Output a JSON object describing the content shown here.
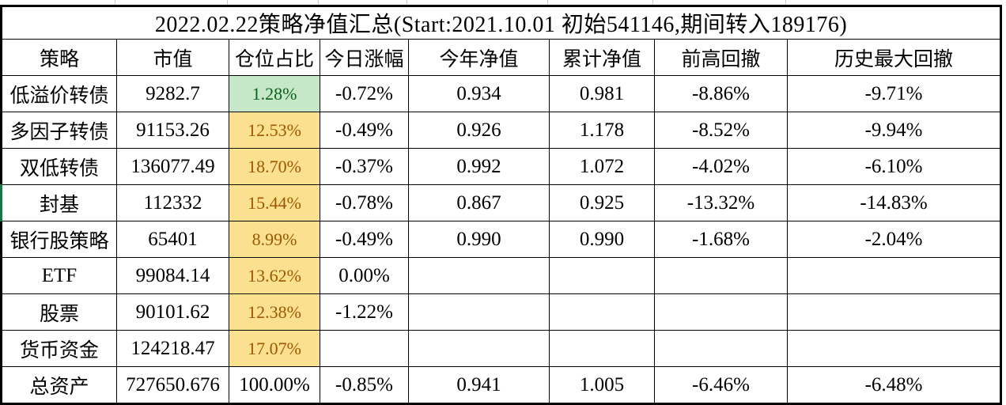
{
  "title": "2022.02.22策略净值汇总(Start:2021.10.01 初始541146,期间转入189176)",
  "colors": {
    "position_green_fill": "#C7E8C8",
    "position_green_text": "#0B611C",
    "position_yellow_fill": "#FBE18F",
    "position_yellow_text": "#9C5700",
    "grid_line": "#000000",
    "row_edge_marker_green": "#1E7145"
  },
  "table": {
    "columns": [
      {
        "key": "strategy",
        "label": "策略"
      },
      {
        "key": "market-value",
        "label": "市值"
      },
      {
        "key": "position-pct",
        "label": "仓位占比"
      },
      {
        "key": "today-change",
        "label": "今日涨幅"
      },
      {
        "key": "ytd-nav",
        "label": "今年净值"
      },
      {
        "key": "cumulative-nav",
        "label": "累计净值"
      },
      {
        "key": "drawdown-from-high",
        "label": "前高回撤"
      },
      {
        "key": "max-drawdown",
        "label": "历史最大回撤"
      }
    ],
    "rows": [
      {
        "fill": "green",
        "green_edge": false,
        "cells": [
          "低溢价转债",
          "9282.7",
          "1.28%",
          "-0.72%",
          "0.934",
          "0.981",
          "-8.86%",
          "-9.71%"
        ]
      },
      {
        "fill": "yellow",
        "green_edge": false,
        "cells": [
          "多因子转债",
          "91153.26",
          "12.53%",
          "-0.49%",
          "0.926",
          "1.178",
          "-8.52%",
          "-9.94%"
        ]
      },
      {
        "fill": "yellow",
        "green_edge": false,
        "cells": [
          "双低转债",
          "136077.49",
          "18.70%",
          "-0.37%",
          "0.992",
          "1.072",
          "-4.02%",
          "-6.10%"
        ]
      },
      {
        "fill": "yellow",
        "green_edge": true,
        "cells": [
          "封基",
          "112332",
          "15.44%",
          "-0.78%",
          "0.867",
          "0.925",
          "-13.32%",
          "-14.83%"
        ]
      },
      {
        "fill": "yellow",
        "green_edge": false,
        "cells": [
          "银行股策略",
          "65401",
          "8.99%",
          "-0.49%",
          "0.990",
          "0.990",
          "-1.68%",
          "-2.04%"
        ]
      },
      {
        "fill": "yellow",
        "green_edge": false,
        "cells": [
          "ETF",
          "99084.14",
          "13.62%",
          "0.00%",
          "",
          "",
          "",
          ""
        ]
      },
      {
        "fill": "yellow",
        "green_edge": false,
        "cells": [
          "股票",
          "90101.62",
          "12.38%",
          "-1.22%",
          "",
          "",
          "",
          ""
        ]
      },
      {
        "fill": "yellow",
        "green_edge": false,
        "cells": [
          "货币资金",
          "124218.47",
          "17.07%",
          "",
          "",
          "",
          "",
          ""
        ]
      },
      {
        "fill": "none",
        "green_edge": false,
        "cells": [
          "总资产",
          "727650.676",
          "100.00%",
          "-0.85%",
          "0.941",
          "1.005",
          "-6.46%",
          "-6.48%"
        ]
      }
    ]
  }
}
